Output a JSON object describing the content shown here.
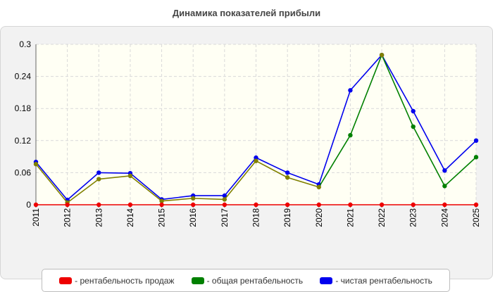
{
  "chart_data": {
    "type": "line",
    "title": "Динамика показателей прибыли",
    "xlabel": "",
    "ylabel": "",
    "x": [
      "2011",
      "2012",
      "2013",
      "2014",
      "2015",
      "2016",
      "2017",
      "2018",
      "2019",
      "2020",
      "2021",
      "2022",
      "2023",
      "2024",
      "2025"
    ],
    "yticks": [
      "0",
      "0.06",
      "0.12",
      "0.18",
      "0.24",
      "0.3"
    ],
    "ylim": [
      0,
      0.3
    ],
    "grid": true,
    "legend_position": "bottom",
    "series": [
      {
        "name": "- рентабельность продаж",
        "color": "#ee0000",
        "values": [
          0,
          0,
          0,
          0,
          0,
          0,
          0,
          0,
          0,
          0,
          0,
          0,
          0,
          0,
          0
        ]
      },
      {
        "name": "- общая рентабельность",
        "color": "#008000",
        "values": [
          0.076,
          0.004,
          0.048,
          0.054,
          0.007,
          0.012,
          0.01,
          0.082,
          0.051,
          0.033,
          0.13,
          0.28,
          0.146,
          0.035,
          0.089
        ]
      },
      {
        "name": "- чистая рентабельность",
        "color": "#0000ee",
        "values": [
          0.08,
          0.009,
          0.06,
          0.059,
          0.01,
          0.017,
          0.017,
          0.088,
          0.06,
          0.038,
          0.214,
          0.28,
          0.175,
          0.064,
          0.12
        ]
      }
    ],
    "overlap_color": "#808000",
    "plot_background": "#fffff4"
  }
}
